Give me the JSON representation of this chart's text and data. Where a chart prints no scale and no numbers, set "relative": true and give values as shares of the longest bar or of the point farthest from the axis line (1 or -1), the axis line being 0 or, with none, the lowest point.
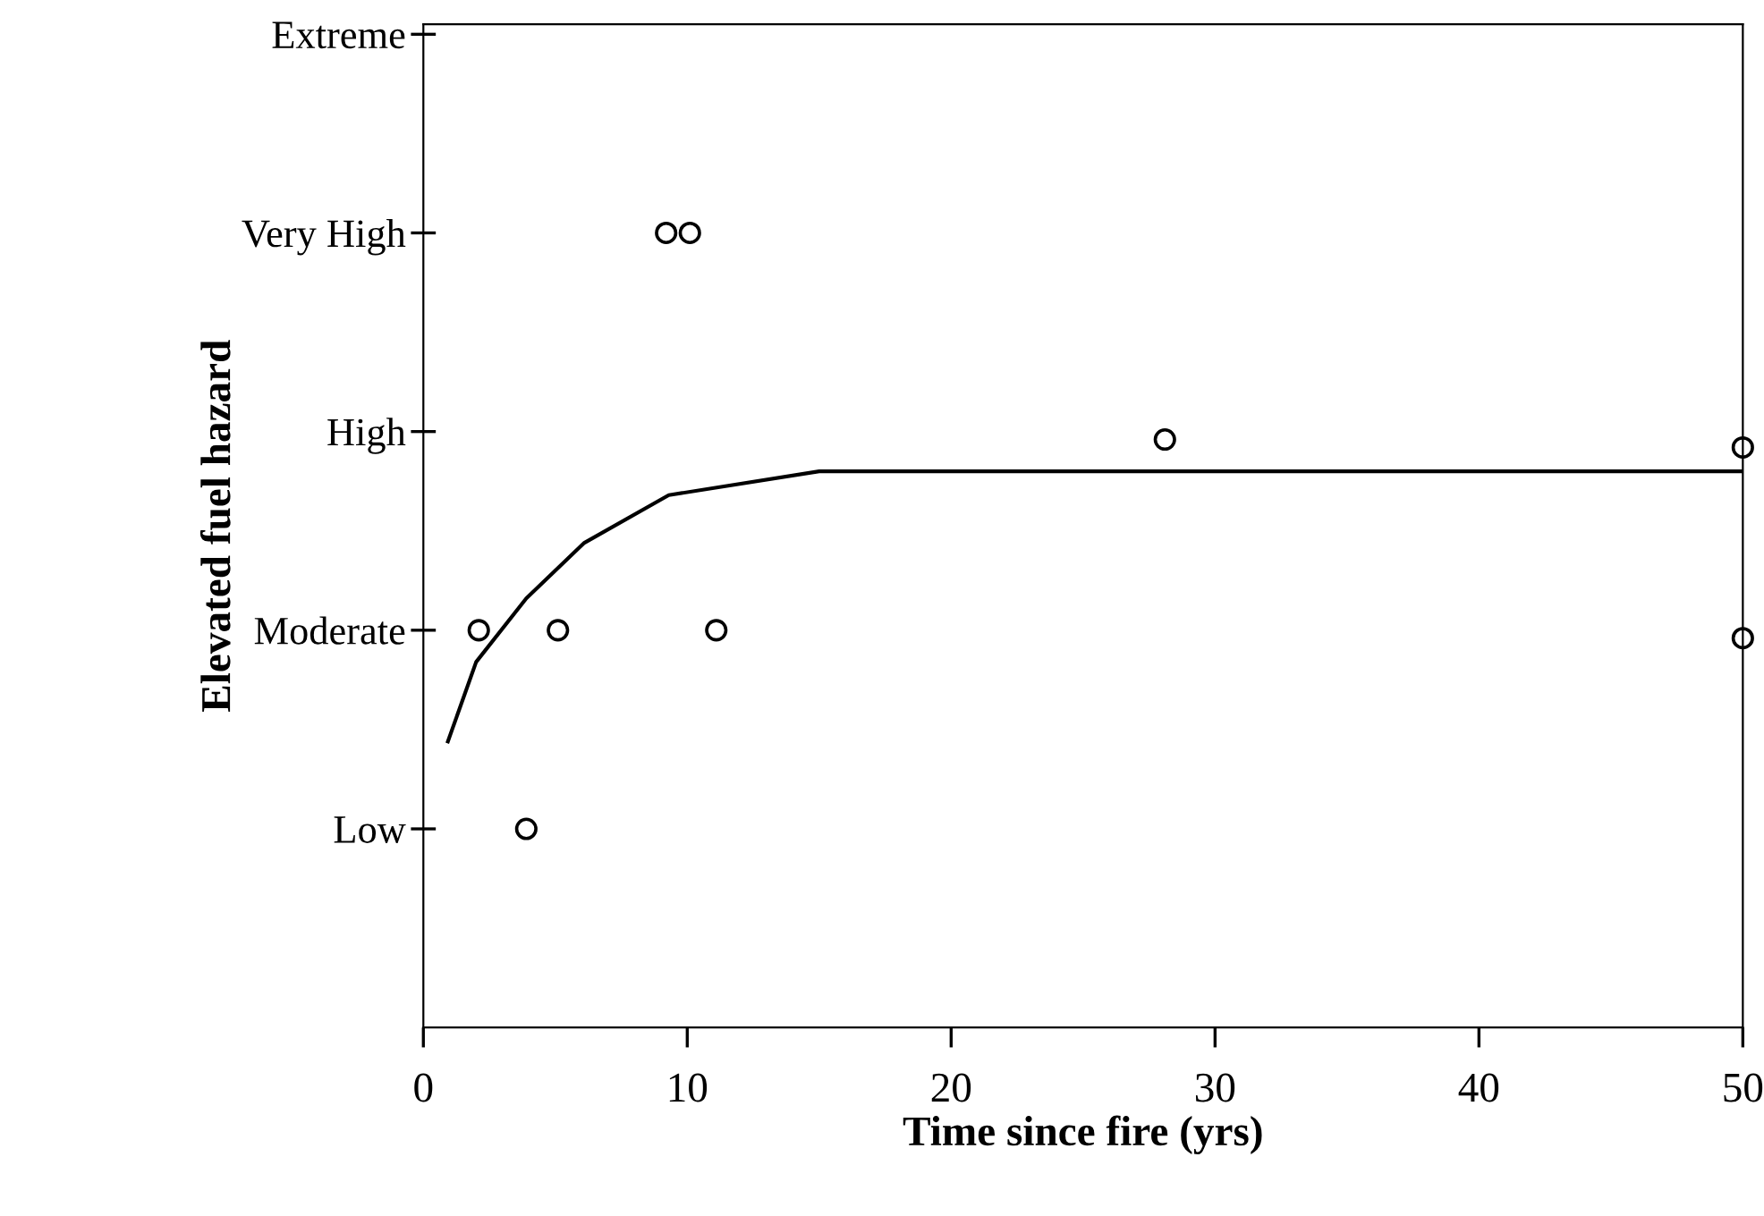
{
  "chart_data": {
    "type": "scatter",
    "xlabel": "Time since fire (yrs)",
    "ylabel": "Elevated fuel hazard",
    "xlim": [
      0,
      50
    ],
    "xticks": [
      0,
      10,
      20,
      30,
      40,
      50
    ],
    "relative": true,
    "y_categories": [
      "Extreme",
      "Very High",
      "High",
      "Moderate",
      "Low",
      null
    ],
    "grid": false,
    "series": [
      {
        "color": "#000000",
        "marker": "circle",
        "x": [
          2.1,
          3.9,
          5.1,
          9.2,
          10.1,
          11.1,
          28.1,
          50,
          50
        ],
        "values": [
          0.5,
          0.25,
          0.5,
          1.0,
          1.0,
          0.5,
          0.74,
          0.73,
          0.49
        ]
      },
      {
        "type": "line",
        "color": "#000000",
        "marker": "none",
        "line_style": "solid",
        "x": [
          0.93,
          2.0,
          3.9,
          6.1,
          9.3,
          15.0,
          50
        ],
        "values": [
          0.36,
          0.46,
          0.54,
          0.61,
          0.67,
          0.7,
          0.7
        ]
      }
    ]
  }
}
